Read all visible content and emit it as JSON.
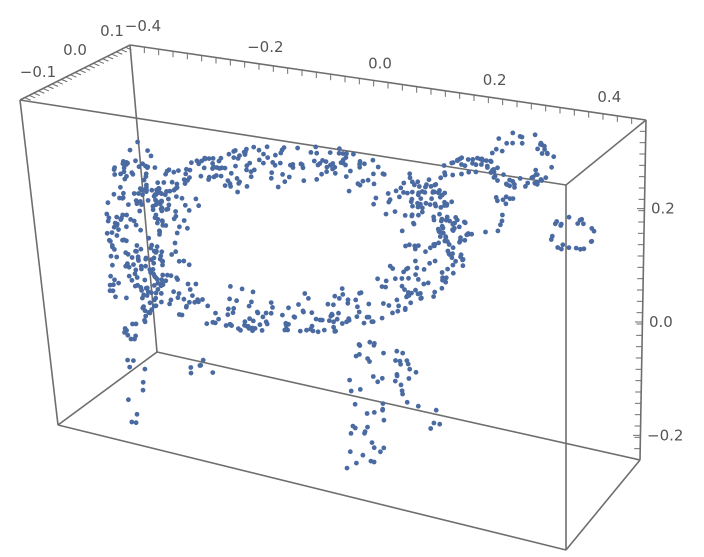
{
  "chart_data": {
    "type": "scatter3d",
    "title": "",
    "marker_color": "#4a6aa2",
    "frame_color": "#6e6e6e",
    "x_axis": {
      "label": "",
      "range": [
        -0.45,
        0.45
      ],
      "ticks": [
        {
          "value": -0.2,
          "label": "−0.2"
        },
        {
          "value": 0.0,
          "label": "0.0"
        },
        {
          "value": 0.2,
          "label": "0.2"
        },
        {
          "value": 0.4,
          "label": "0.4"
        }
      ],
      "edge_extra_labels": [
        {
          "label": "−0.4"
        }
      ]
    },
    "y_axis": {
      "label": "",
      "range": [
        -0.15,
        0.15
      ],
      "ticks": [
        {
          "value": -0.1,
          "label": "−0.1"
        },
        {
          "value": 0.0,
          "label": "0.0"
        },
        {
          "value": 0.1,
          "label": "0.1"
        }
      ]
    },
    "z_axis": {
      "label": "",
      "range": [
        -0.3,
        0.3
      ],
      "ticks": [
        {
          "value": 0.2,
          "label": "0.2"
        },
        {
          "value": 0.0,
          "label": "0.0"
        },
        {
          "value": -0.2,
          "label": "−0.2"
        }
      ]
    },
    "points_description": "point cloud of a cow shape (approx. 900 points)",
    "point_count": 900
  }
}
